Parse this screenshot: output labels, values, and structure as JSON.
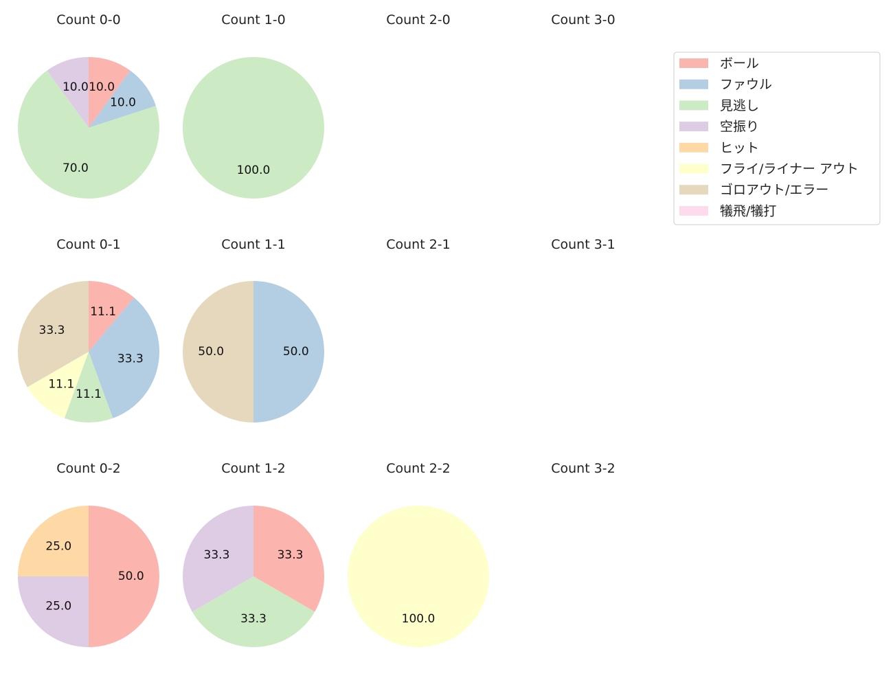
{
  "chart_data": {
    "type": "pie",
    "start_angle": "12 o'clock, clockwise",
    "label_unit": "%",
    "categories": [
      "ボール",
      "ファウル",
      "見逃し",
      "空振り",
      "ヒット",
      "フライ/ライナー アウト",
      "ゴロアウト/エラー",
      "犠飛/犠打"
    ],
    "colors": [
      "#fbb4ae",
      "#b3cde3",
      "#ccebc5",
      "#decbe4",
      "#fed9a6",
      "#ffffcc",
      "#e5d8bd",
      "#fddaec"
    ],
    "legend": {
      "placement": "top-right"
    },
    "panels": [
      {
        "title": "Count 0-0",
        "values": [
          10.0,
          10.0,
          70.0,
          10.0,
          0,
          0,
          0,
          0
        ]
      },
      {
        "title": "Count 1-0",
        "values": [
          0,
          0,
          100.0,
          0,
          0,
          0,
          0,
          0
        ]
      },
      {
        "title": "Count 2-0",
        "values": []
      },
      {
        "title": "Count 3-0",
        "values": []
      },
      {
        "title": "Count 0-1",
        "values": [
          11.1,
          33.3,
          11.1,
          0,
          0,
          11.1,
          33.3,
          0
        ]
      },
      {
        "title": "Count 1-1",
        "values": [
          0,
          50.0,
          0,
          0,
          0,
          0,
          50.0,
          0
        ]
      },
      {
        "title": "Count 2-1",
        "values": []
      },
      {
        "title": "Count 3-1",
        "values": []
      },
      {
        "title": "Count 0-2",
        "values": [
          50.0,
          0,
          0,
          25.0,
          25.0,
          0,
          0,
          0
        ]
      },
      {
        "title": "Count 1-2",
        "values": [
          33.3,
          0,
          33.3,
          33.3,
          0,
          0,
          0,
          0
        ]
      },
      {
        "title": "Count 2-2",
        "values": [
          0,
          0,
          0,
          0,
          0,
          100.0,
          0,
          0
        ]
      },
      {
        "title": "Count 3-2",
        "values": []
      }
    ]
  }
}
